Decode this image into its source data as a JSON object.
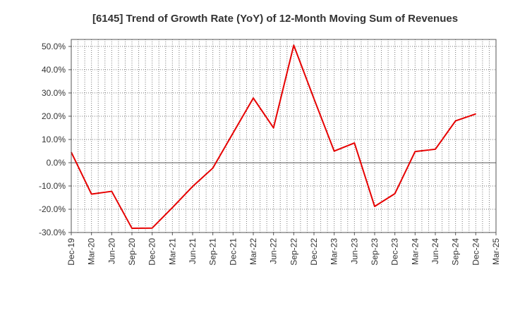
{
  "chart_data": {
    "type": "line",
    "title": "[6145]  Trend of Growth Rate (YoY) of 12-Month Moving Sum of Revenues",
    "xlabel": "",
    "ylabel": "",
    "x_tick_labels": [
      "Dec-19",
      "Mar-20",
      "Jun-20",
      "Sep-20",
      "Dec-20",
      "Mar-21",
      "Jun-21",
      "Sep-21",
      "Dec-21",
      "Mar-22",
      "Jun-22",
      "Sep-22",
      "Dec-22",
      "Mar-23",
      "Jun-23",
      "Sep-23",
      "Dec-23",
      "Mar-24",
      "Jun-24",
      "Sep-24",
      "Dec-24",
      "Mar-25"
    ],
    "y_ticks": [
      50,
      40,
      30,
      20,
      10,
      0,
      -10,
      -20,
      -30
    ],
    "y_tick_labels": [
      "50.0%",
      "40.0%",
      "30.0%",
      "20.0%",
      "10.0%",
      "0.0%",
      "-10.0%",
      "-20.0%",
      "-30.0%"
    ],
    "ylim": [
      -30,
      53
    ],
    "grid": true,
    "series": [
      {
        "color": "#e60000",
        "values": [
          4.5,
          -13.5,
          -12.3,
          -28.2,
          -28.1,
          -19.3,
          -10.2,
          -2.3,
          12.8,
          27.8,
          15.0,
          50.5,
          27.5,
          5.0,
          8.5,
          -18.8,
          -13.3,
          4.8,
          5.8,
          18.0,
          21.0
        ]
      }
    ]
  }
}
